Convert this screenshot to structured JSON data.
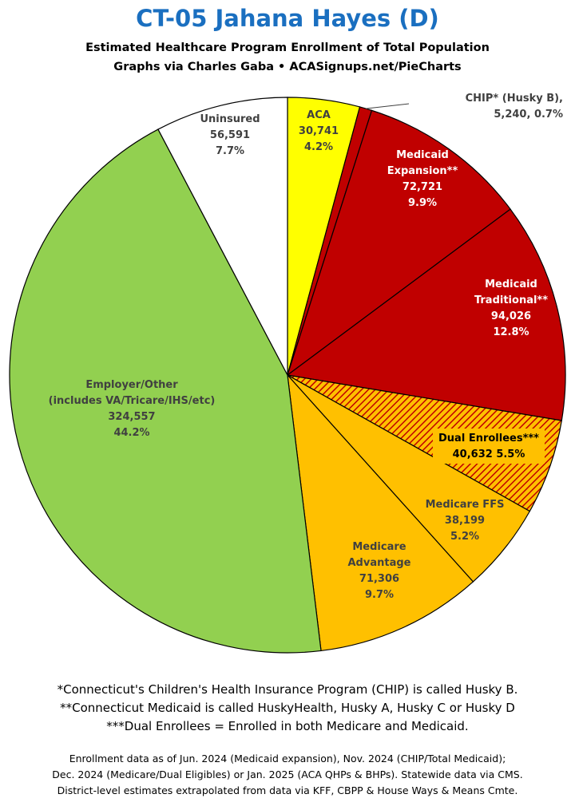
{
  "header": {
    "title": "CT-05 Jahana Hayes (D)",
    "subtitle1": "Estimated Healthcare Program Enrollment of Total Population",
    "subtitle2": "Graphs via Charles Gaba  •  ACASignups.net/PieCharts"
  },
  "chart_data": {
    "type": "pie",
    "start": "12 o'clock",
    "direction": "clockwise",
    "slices": [
      {
        "label": "ACA",
        "value": 30741,
        "pct": "4.2%",
        "color": "#ffff00",
        "lines": [
          "ACA",
          "30,741",
          "4.2%"
        ],
        "text_color": "#404040"
      },
      {
        "label": "CHIP* (Husky B)",
        "value": 5240,
        "pct": "0.7%",
        "color": "#c00000",
        "lines": [
          "CHIP* (Husky B),",
          "5,240, 0.7%"
        ],
        "text_color": "#404040",
        "outside": true
      },
      {
        "label": "Medicaid Expansion**",
        "value": 72721,
        "pct": "9.9%",
        "color": "#c00000",
        "lines": [
          "Medicaid",
          "Expansion**",
          "72,721",
          "9.9%"
        ],
        "text_color": "#ffffff"
      },
      {
        "label": "Medicaid Traditional**",
        "value": 94026,
        "pct": "12.8%",
        "color": "#c00000",
        "lines": [
          "Medicaid",
          "Traditional**",
          "94,026",
          "12.8%"
        ],
        "text_color": "#ffffff"
      },
      {
        "label": "Dual Enrollees***",
        "value": 40632,
        "pct": "5.5%",
        "color": "#ffc000",
        "pattern": "hatch",
        "lines": [
          "Dual Enrollees***",
          "40,632 5.5%"
        ],
        "text_color": "#000000"
      },
      {
        "label": "Medicare FFS",
        "value": 38199,
        "pct": "5.2%",
        "color": "#ffc000",
        "lines": [
          "Medicare FFS",
          "38,199",
          "5.2%"
        ],
        "text_color": "#404040"
      },
      {
        "label": "Medicare Advantage",
        "value": 71306,
        "pct": "9.7%",
        "color": "#ffc000",
        "lines": [
          "Medicare",
          "Advantage",
          "71,306",
          "9.7%"
        ],
        "text_color": "#404040"
      },
      {
        "label": "Employer/Other (includes VA/Tricare/IHS/etc)",
        "value": 324557,
        "pct": "44.2%",
        "color": "#92d050",
        "lines": [
          "Employer/Other",
          "(includes VA/Tricare/IHS/etc)",
          "324,557",
          "44.2%"
        ],
        "text_color": "#404040"
      },
      {
        "label": "Uninsured",
        "value": 56591,
        "pct": "7.7%",
        "color": "#ffffff",
        "lines": [
          "Uninsured",
          "56,591",
          "7.7%"
        ],
        "text_color": "#404040"
      }
    ]
  },
  "footnotes": {
    "line1": "*Connecticut's Children's Health Insurance Program (CHIP) is called Husky B.",
    "line2": "**Connecticut Medicaid is called HuskyHealth, Husky A, Husky C or Husky D",
    "line3": "***Dual Enrollees = Enrolled in both Medicare and Medicaid."
  },
  "source": {
    "line1": "Enrollment data as of Jun. 2024 (Medicaid expansion), Nov. 2024 (CHIP/Total Medicaid);",
    "line2": "Dec. 2024 (Medicare/Dual Eligibles) or Jan. 2025 (ACA QHPs & BHPs). Statewide data via CMS.",
    "line3": "District-level estimates extrapolated from data via KFF, CBPP & House Ways & Means Cmte."
  }
}
